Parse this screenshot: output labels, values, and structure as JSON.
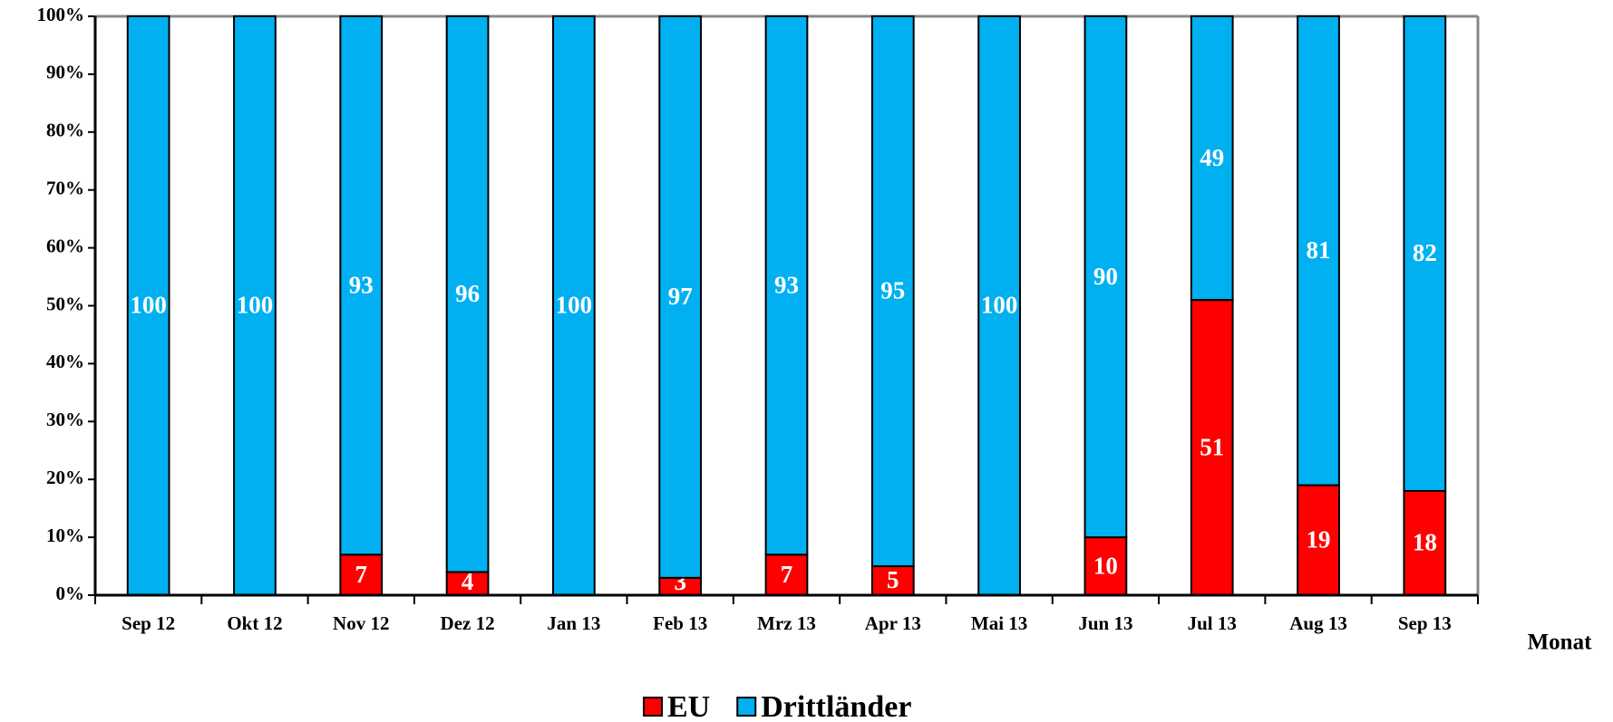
{
  "chart_data": {
    "type": "stacked_bar",
    "x_label": "Monat",
    "categories": [
      "Sep 12",
      "Okt 12",
      "Nov 12",
      "Dez 12",
      "Jan 13",
      "Feb 13",
      "Mrz 13",
      "Apr 13",
      "Mai 13",
      "Jun 13",
      "Jul 13",
      "Aug 13",
      "Sep 13"
    ],
    "series": [
      {
        "name": "EU",
        "color": "#ff0000",
        "values": [
          0,
          0,
          7,
          4,
          0,
          3,
          7,
          5,
          0,
          10,
          51,
          19,
          18
        ]
      },
      {
        "name": "Drittländer",
        "color": "#00b0f0",
        "values": [
          100,
          100,
          93,
          96,
          100,
          97,
          93,
          95,
          100,
          90,
          49,
          81,
          82
        ]
      }
    ],
    "ylim": [
      0,
      100
    ],
    "yticks": [
      {
        "value": 0,
        "label": "0%"
      },
      {
        "value": 10,
        "label": "10%"
      },
      {
        "value": 20,
        "label": "20%"
      },
      {
        "value": 30,
        "label": "30%"
      },
      {
        "value": 40,
        "label": "40%"
      },
      {
        "value": 50,
        "label": "50%"
      },
      {
        "value": 60,
        "label": "60%"
      },
      {
        "value": 70,
        "label": "70%"
      },
      {
        "value": 80,
        "label": "80%"
      },
      {
        "value": 90,
        "label": "90%"
      },
      {
        "value": 100,
        "label": "100%"
      }
    ],
    "legend": "bottom"
  }
}
